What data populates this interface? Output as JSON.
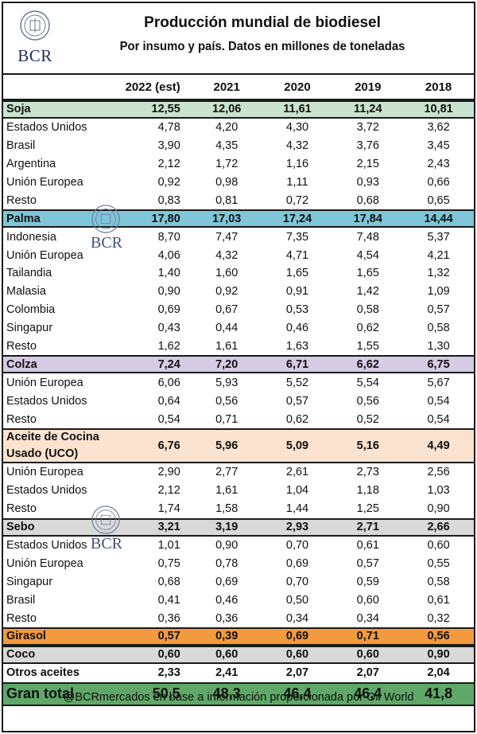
{
  "logo": {
    "text": "BCR"
  },
  "header": {
    "title": "Producción mundial de biodiesel",
    "subtitle": "Por insumo y país. Datos en millones de toneladas"
  },
  "columns": [
    "2022 (est)",
    "2021",
    "2020",
    "2019",
    "2018"
  ],
  "colors": {
    "soja": "#c9e3cf",
    "palma": "#7fc6d9",
    "colza": "#d6cbe4",
    "uco": "#fbe3cf",
    "sebo": "#d9d9d9",
    "girasol": "#f39a3e",
    "coco": "#d9d9d9",
    "otros": "#ffffff",
    "total": "#5fa868"
  },
  "rows": [
    {
      "name": "Soja",
      "cat": "soja",
      "values": [
        "12,55",
        "12,06",
        "11,61",
        "11,24",
        "10,81"
      ]
    },
    {
      "name": "Estados Unidos",
      "values": [
        "4,78",
        "4,20",
        "4,30",
        "3,72",
        "3,62"
      ]
    },
    {
      "name": "Brasil",
      "values": [
        "3,90",
        "4,35",
        "4,32",
        "3,76",
        "3,45"
      ]
    },
    {
      "name": "Argentina",
      "values": [
        "2,12",
        "1,72",
        "1,16",
        "2,15",
        "2,43"
      ]
    },
    {
      "name": "Unión Europea",
      "values": [
        "0,92",
        "0,98",
        "1,11",
        "0,93",
        "0,66"
      ]
    },
    {
      "name": "Resto",
      "values": [
        "0,83",
        "0,81",
        "0,72",
        "0,68",
        "0,65"
      ]
    },
    {
      "name": "Palma",
      "cat": "palma",
      "values": [
        "17,80",
        "17,03",
        "17,24",
        "17,84",
        "14,44"
      ]
    },
    {
      "name": "Indonesia",
      "values": [
        "8,70",
        "7,47",
        "7,35",
        "7,48",
        "5,37"
      ]
    },
    {
      "name": "Unión Europea",
      "values": [
        "4,06",
        "4,32",
        "4,71",
        "4,54",
        "4,21"
      ]
    },
    {
      "name": "Tailandia",
      "values": [
        "1,40",
        "1,60",
        "1,65",
        "1,65",
        "1,32"
      ]
    },
    {
      "name": "Malasia",
      "values": [
        "0,90",
        "0,92",
        "0,91",
        "1,42",
        "1,09"
      ]
    },
    {
      "name": "Colombia",
      "values": [
        "0,69",
        "0,67",
        "0,53",
        "0,58",
        "0,57"
      ]
    },
    {
      "name": "Singapur",
      "values": [
        "0,43",
        "0,44",
        "0,46",
        "0,62",
        "0,58"
      ]
    },
    {
      "name": "Resto",
      "values": [
        "1,62",
        "1,61",
        "1,63",
        "1,55",
        "1,30"
      ]
    },
    {
      "name": "Colza",
      "cat": "colza",
      "values": [
        "7,24",
        "7,20",
        "6,71",
        "6,62",
        "6,75"
      ]
    },
    {
      "name": "Unión Europea",
      "values": [
        "6,06",
        "5,93",
        "5,52",
        "5,54",
        "5,67"
      ]
    },
    {
      "name": "Estados Unidos",
      "values": [
        "0,64",
        "0,56",
        "0,57",
        "0,56",
        "0,54"
      ]
    },
    {
      "name": "Resto",
      "values": [
        "0,54",
        "0,71",
        "0,62",
        "0,52",
        "0,54"
      ]
    },
    {
      "name": "Aceite de Cocina Usado (UCO)",
      "cat": "uco",
      "double": true,
      "values": [
        "6,76",
        "5,96",
        "5,09",
        "5,16",
        "4,49"
      ]
    },
    {
      "name": "Unión Europea",
      "values": [
        "2,90",
        "2,77",
        "2,61",
        "2,73",
        "2,56"
      ]
    },
    {
      "name": "Estados Unidos",
      "values": [
        "2,12",
        "1,61",
        "1,04",
        "1,18",
        "1,03"
      ]
    },
    {
      "name": "Resto",
      "values": [
        "1,74",
        "1,58",
        "1,44",
        "1,25",
        "0,90"
      ]
    },
    {
      "name": "Sebo",
      "cat": "sebo",
      "values": [
        "3,21",
        "3,19",
        "2,93",
        "2,71",
        "2,66"
      ]
    },
    {
      "name": "Estados Unidos",
      "values": [
        "1,01",
        "0,90",
        "0,70",
        "0,61",
        "0,60"
      ]
    },
    {
      "name": "Unión Europea",
      "values": [
        "0,75",
        "0,78",
        "0,69",
        "0,57",
        "0,55"
      ]
    },
    {
      "name": "Singapur",
      "values": [
        "0,68",
        "0,69",
        "0,70",
        "0,59",
        "0,58"
      ]
    },
    {
      "name": "Brasil",
      "values": [
        "0,41",
        "0,46",
        "0,50",
        "0,60",
        "0,61"
      ]
    },
    {
      "name": "Resto",
      "values": [
        "0,36",
        "0,36",
        "0,34",
        "0,34",
        "0,32"
      ]
    },
    {
      "name": "Girasol",
      "cat": "girasol",
      "values": [
        "0,57",
        "0,39",
        "0,69",
        "0,71",
        "0,56"
      ]
    },
    {
      "name": "Coco",
      "cat": "coco",
      "values": [
        "0,60",
        "0,60",
        "0,60",
        "0,60",
        "0,90"
      ]
    },
    {
      "name": "Otros aceites",
      "cat": "otros",
      "values": [
        "2,33",
        "2,41",
        "2,07",
        "2,07",
        "2,04"
      ]
    }
  ],
  "total": {
    "name": "Gran total",
    "values": [
      "50,5",
      "48,3",
      "46,4",
      "46,4",
      "41,8"
    ]
  },
  "footer": "@BCRmercados en base a información proporcionada por Oil World"
}
